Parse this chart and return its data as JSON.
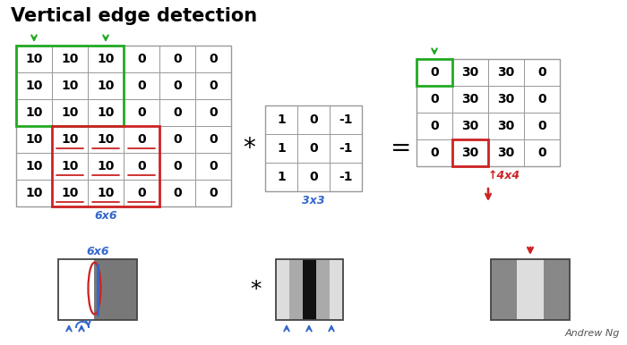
{
  "title": "Vertical edge detection",
  "matrix6x6": [
    [
      10,
      10,
      10,
      0,
      0,
      0
    ],
    [
      10,
      10,
      10,
      0,
      0,
      0
    ],
    [
      10,
      10,
      10,
      0,
      0,
      0
    ],
    [
      10,
      10,
      10,
      0,
      0,
      0
    ],
    [
      10,
      10,
      10,
      0,
      0,
      0
    ],
    [
      10,
      10,
      10,
      0,
      0,
      0
    ]
  ],
  "matrix3x3": [
    [
      1,
      0,
      -1
    ],
    [
      1,
      0,
      -1
    ],
    [
      1,
      0,
      -1
    ]
  ],
  "matrix4x4": [
    [
      0,
      30,
      30,
      0
    ],
    [
      0,
      30,
      30,
      0
    ],
    [
      0,
      30,
      30,
      0
    ],
    [
      0,
      30,
      30,
      0
    ]
  ],
  "label_6x6": "6x6",
  "label_3x3": "3x3",
  "label_4x4": "4x4",
  "green_color": "#22aa22",
  "red_color": "#cc2222",
  "blue_color": "#3366cc",
  "cell_color": "#888888",
  "text_color": "#111111"
}
